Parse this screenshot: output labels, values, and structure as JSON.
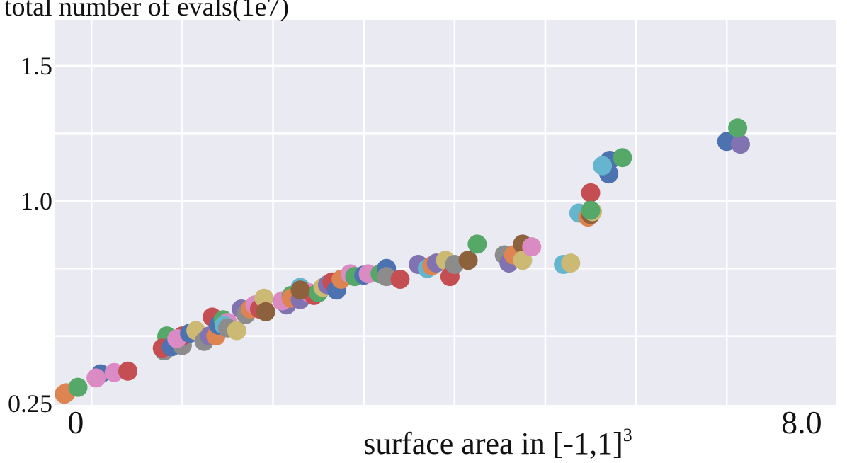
{
  "chart_data": {
    "type": "scatter",
    "title": "total number of evals(1e7)",
    "xlabel": "surface area in [-1,1]",
    "xlabel_superscript": "3",
    "ylabel": "",
    "xlim": [
      -0.1,
      8.5
    ],
    "ylim": [
      0.245,
      1.67
    ],
    "grid": true,
    "legend": "none",
    "x_ticks": [
      {
        "value": 0,
        "label": "0"
      },
      {
        "value": 8.0,
        "label": "8.0"
      }
    ],
    "y_ticks": [
      {
        "value": 0.25,
        "label": "0.25"
      },
      {
        "value": 1.0,
        "label": "1.0"
      },
      {
        "value": 1.5,
        "label": "1.5"
      }
    ],
    "x_gridlines": [
      0.3,
      1.3,
      2.3,
      3.3,
      4.3,
      5.3,
      6.3,
      7.3
    ],
    "y_gridlines": [
      0.5,
      0.75,
      1.0,
      1.25,
      1.5
    ],
    "colors": {
      "background": "#EAEAF2",
      "grid": "#FFFFFF",
      "blue": "#4C72B0",
      "green": "#55A868",
      "red": "#C44E52",
      "purple": "#8172B2",
      "orange": "#DD8452",
      "brown": "#8C613C",
      "pink": "#DA8BC3",
      "gray": "#8C8C8C",
      "yellow": "#CCB974",
      "cyan": "#64B5CD"
    },
    "points": [
      {
        "x": 0.0,
        "y": 0.285,
        "c": "orange"
      },
      {
        "x": 0.02,
        "y": 0.29,
        "c": "orange"
      },
      {
        "x": 0.15,
        "y": 0.31,
        "c": "green"
      },
      {
        "x": 0.4,
        "y": 0.36,
        "c": "blue"
      },
      {
        "x": 0.35,
        "y": 0.345,
        "c": "pink"
      },
      {
        "x": 0.55,
        "y": 0.365,
        "c": "pink"
      },
      {
        "x": 0.7,
        "y": 0.37,
        "c": "red"
      },
      {
        "x": 1.12,
        "y": 0.48,
        "c": "yellow"
      },
      {
        "x": 1.1,
        "y": 0.46,
        "c": "cyan"
      },
      {
        "x": 1.13,
        "y": 0.5,
        "c": "green"
      },
      {
        "x": 1.1,
        "y": 0.445,
        "c": "gray"
      },
      {
        "x": 1.08,
        "y": 0.455,
        "c": "red"
      },
      {
        "x": 1.18,
        "y": 0.46,
        "c": "blue"
      },
      {
        "x": 1.3,
        "y": 0.465,
        "c": "gray"
      },
      {
        "x": 1.3,
        "y": 0.5,
        "c": "red"
      },
      {
        "x": 1.24,
        "y": 0.49,
        "c": "pink"
      },
      {
        "x": 1.38,
        "y": 0.51,
        "c": "blue"
      },
      {
        "x": 1.45,
        "y": 0.52,
        "c": "yellow"
      },
      {
        "x": 1.54,
        "y": 0.48,
        "c": "gray"
      },
      {
        "x": 1.6,
        "y": 0.5,
        "c": "purple"
      },
      {
        "x": 1.67,
        "y": 0.5,
        "c": "orange"
      },
      {
        "x": 1.63,
        "y": 0.57,
        "c": "red"
      },
      {
        "x": 1.7,
        "y": 0.54,
        "c": "blue"
      },
      {
        "x": 1.75,
        "y": 0.56,
        "c": "green"
      },
      {
        "x": 1.8,
        "y": 0.55,
        "c": "pink"
      },
      {
        "x": 1.76,
        "y": 0.54,
        "c": "cyan"
      },
      {
        "x": 1.8,
        "y": 0.53,
        "c": "gray"
      },
      {
        "x": 1.9,
        "y": 0.52,
        "c": "yellow"
      },
      {
        "x": 1.95,
        "y": 0.6,
        "c": "purple"
      },
      {
        "x": 2.0,
        "y": 0.58,
        "c": "gray"
      },
      {
        "x": 2.05,
        "y": 0.6,
        "c": "orange"
      },
      {
        "x": 2.1,
        "y": 0.615,
        "c": "pink"
      },
      {
        "x": 2.15,
        "y": 0.6,
        "c": "red"
      },
      {
        "x": 2.2,
        "y": 0.64,
        "c": "yellow"
      },
      {
        "x": 2.22,
        "y": 0.59,
        "c": "brown"
      },
      {
        "x": 2.45,
        "y": 0.615,
        "c": "purple"
      },
      {
        "x": 2.4,
        "y": 0.63,
        "c": "pink"
      },
      {
        "x": 2.5,
        "y": 0.65,
        "c": "green"
      },
      {
        "x": 2.5,
        "y": 0.64,
        "c": "orange"
      },
      {
        "x": 2.6,
        "y": 0.635,
        "c": "purple"
      },
      {
        "x": 2.6,
        "y": 0.68,
        "c": "cyan"
      },
      {
        "x": 2.7,
        "y": 0.66,
        "c": "pink"
      },
      {
        "x": 2.75,
        "y": 0.65,
        "c": "red"
      },
      {
        "x": 2.8,
        "y": 0.66,
        "c": "green"
      },
      {
        "x": 2.6,
        "y": 0.67,
        "c": "brown"
      },
      {
        "x": 2.85,
        "y": 0.68,
        "c": "yellow"
      },
      {
        "x": 2.9,
        "y": 0.69,
        "c": "purple"
      },
      {
        "x": 2.95,
        "y": 0.7,
        "c": "red"
      },
      {
        "x": 3.0,
        "y": 0.67,
        "c": "blue"
      },
      {
        "x": 3.05,
        "y": 0.71,
        "c": "orange"
      },
      {
        "x": 3.15,
        "y": 0.73,
        "c": "pink"
      },
      {
        "x": 3.2,
        "y": 0.72,
        "c": "green"
      },
      {
        "x": 3.3,
        "y": 0.725,
        "c": "blue"
      },
      {
        "x": 3.35,
        "y": 0.73,
        "c": "pink"
      },
      {
        "x": 3.48,
        "y": 0.73,
        "c": "green"
      },
      {
        "x": 3.55,
        "y": 0.75,
        "c": "blue"
      },
      {
        "x": 3.55,
        "y": 0.72,
        "c": "gray"
      },
      {
        "x": 3.7,
        "y": 0.71,
        "c": "red"
      },
      {
        "x": 3.9,
        "y": 0.765,
        "c": "purple"
      },
      {
        "x": 4.0,
        "y": 0.75,
        "c": "cyan"
      },
      {
        "x": 4.05,
        "y": 0.76,
        "c": "orange"
      },
      {
        "x": 4.1,
        "y": 0.77,
        "c": "purple"
      },
      {
        "x": 4.2,
        "y": 0.78,
        "c": "yellow"
      },
      {
        "x": 4.25,
        "y": 0.72,
        "c": "red"
      },
      {
        "x": 4.3,
        "y": 0.765,
        "c": "gray"
      },
      {
        "x": 4.45,
        "y": 0.78,
        "c": "brown"
      },
      {
        "x": 4.55,
        "y": 0.84,
        "c": "green"
      },
      {
        "x": 4.85,
        "y": 0.8,
        "c": "blue"
      },
      {
        "x": 4.85,
        "y": 0.8,
        "c": "gray"
      },
      {
        "x": 4.9,
        "y": 0.77,
        "c": "purple"
      },
      {
        "x": 4.95,
        "y": 0.8,
        "c": "orange"
      },
      {
        "x": 5.05,
        "y": 0.84,
        "c": "brown"
      },
      {
        "x": 5.05,
        "y": 0.78,
        "c": "yellow"
      },
      {
        "x": 5.15,
        "y": 0.83,
        "c": "pink"
      },
      {
        "x": 5.5,
        "y": 0.765,
        "c": "cyan"
      },
      {
        "x": 5.58,
        "y": 0.77,
        "c": "yellow"
      },
      {
        "x": 5.67,
        "y": 0.955,
        "c": "cyan"
      },
      {
        "x": 5.8,
        "y": 1.03,
        "c": "red"
      },
      {
        "x": 5.77,
        "y": 0.94,
        "c": "orange"
      },
      {
        "x": 5.8,
        "y": 0.95,
        "c": "brown"
      },
      {
        "x": 5.82,
        "y": 0.96,
        "c": "yellow"
      },
      {
        "x": 5.8,
        "y": 0.965,
        "c": "green"
      },
      {
        "x": 6.01,
        "y": 1.15,
        "c": "blue"
      },
      {
        "x": 6.0,
        "y": 1.1,
        "c": "blue"
      },
      {
        "x": 5.93,
        "y": 1.13,
        "c": "cyan"
      },
      {
        "x": 6.15,
        "y": 1.16,
        "c": "green"
      },
      {
        "x": 7.3,
        "y": 1.22,
        "c": "blue"
      },
      {
        "x": 7.45,
        "y": 1.21,
        "c": "purple"
      },
      {
        "x": 7.42,
        "y": 1.27,
        "c": "green"
      }
    ]
  }
}
